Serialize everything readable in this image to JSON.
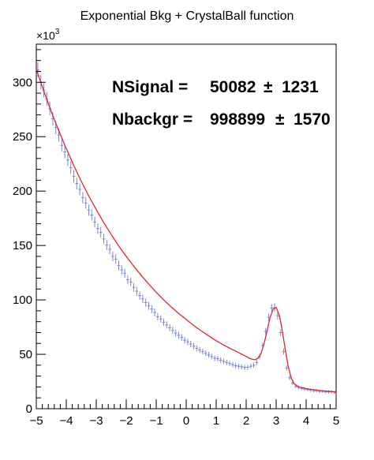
{
  "chart_data": {
    "type": "line",
    "title": "Exponential Bkg + CrystalBall function",
    "xlabel": "",
    "ylabel": "",
    "xlim": [
      -5,
      5
    ],
    "ylim": [
      0,
      335000
    ],
    "y_exponent_label": "×10",
    "y_exponent_power": "3",
    "x_ticks": [
      "−5",
      "−4",
      "−3",
      "−2",
      "−1",
      "0",
      "1",
      "2",
      "3",
      "4",
      "5"
    ],
    "x_tick_values": [
      -5,
      -4,
      -3,
      -2,
      -1,
      0,
      1,
      2,
      3,
      4,
      5
    ],
    "y_ticks": [
      "0",
      "50",
      "100",
      "150",
      "200",
      "250",
      "300"
    ],
    "y_tick_values": [
      0,
      50000,
      100000,
      150000,
      200000,
      250000,
      300000
    ],
    "annotations": [
      {
        "label": "NSignal =",
        "value": "50082",
        "pm": "±",
        "error": "1231"
      },
      {
        "label": "Nbackgr =",
        "value": "998899",
        "pm": "±",
        "error": "1570"
      }
    ],
    "series": [
      {
        "kind": "histogram",
        "color": "#7b86d6",
        "x": [
          -4.95,
          -4.85,
          -4.75,
          -4.65,
          -4.55,
          -4.45,
          -4.35,
          -4.25,
          -4.15,
          -4.05,
          -3.95,
          -3.85,
          -3.75,
          -3.65,
          -3.55,
          -3.45,
          -3.35,
          -3.25,
          -3.15,
          -3.05,
          -2.95,
          -2.85,
          -2.75,
          -2.65,
          -2.55,
          -2.45,
          -2.35,
          -2.25,
          -2.15,
          -2.05,
          -1.95,
          -1.85,
          -1.75,
          -1.65,
          -1.55,
          -1.45,
          -1.35,
          -1.25,
          -1.15,
          -1.05,
          -0.95,
          -0.85,
          -0.75,
          -0.65,
          -0.55,
          -0.45,
          -0.35,
          -0.25,
          -0.15,
          -0.05,
          0.05,
          0.15,
          0.25,
          0.35,
          0.45,
          0.55,
          0.65,
          0.75,
          0.85,
          0.95,
          1.05,
          1.15,
          1.25,
          1.35,
          1.45,
          1.55,
          1.65,
          1.75,
          1.85,
          1.95,
          2.05,
          2.15,
          2.25,
          2.35,
          2.45,
          2.55,
          2.65,
          2.75,
          2.85,
          2.95,
          3.05,
          3.15,
          3.25,
          3.35,
          3.45,
          3.55,
          3.65,
          3.75,
          3.85,
          3.95,
          4.05,
          4.15,
          4.25,
          4.35,
          4.45,
          4.55,
          4.65,
          4.75,
          4.85,
          4.95
        ],
        "y": [
          311500,
          300000,
          292500,
          284500,
          276000,
          266500,
          258500,
          251500,
          242000,
          236000,
          228500,
          221500,
          213500,
          207000,
          201500,
          194000,
          189000,
          182500,
          178000,
          171500,
          165500,
          162000,
          156000,
          150500,
          146500,
          140000,
          137500,
          131500,
          127500,
          124500,
          118500,
          116500,
          111500,
          108000,
          104000,
          101000,
          97500,
          94500,
          91500,
          88500,
          84500,
          82500,
          79500,
          77000,
          74500,
          72000,
          69500,
          67500,
          65500,
          63000,
          61500,
          59500,
          57500,
          55500,
          54000,
          52500,
          51000,
          49500,
          48000,
          46500,
          46000,
          44500,
          43500,
          42500,
          41500,
          40500,
          39500,
          39000,
          38500,
          38000,
          38000,
          39000,
          40000,
          42500,
          48000,
          58000,
          71000,
          84000,
          92500,
          93000,
          85500,
          70000,
          52500,
          37500,
          28500,
          23500,
          20500,
          19500,
          18500,
          18000,
          17500,
          17000,
          16500,
          16500,
          16000,
          16000,
          15500,
          15500,
          15500,
          15000
        ]
      },
      {
        "kind": "fit",
        "color": "#e0262a",
        "x": [
          -5,
          -4.75,
          -4.5,
          -4.25,
          -4,
          -3.75,
          -3.5,
          -3.25,
          -3,
          -2.75,
          -2.5,
          -2.25,
          -2,
          -1.75,
          -1.5,
          -1.25,
          -1,
          -0.75,
          -0.5,
          -0.25,
          0,
          0.25,
          0.5,
          0.75,
          1,
          1.25,
          1.5,
          1.75,
          2,
          2.1,
          2.2,
          2.3,
          2.4,
          2.5,
          2.6,
          2.7,
          2.8,
          2.9,
          3,
          3.1,
          3.2,
          3.3,
          3.4,
          3.5,
          3.6,
          3.75,
          4,
          4.25,
          4.5,
          4.75,
          5
        ],
        "y": [
          312000,
          292000,
          273000,
          255500,
          239000,
          223500,
          209000,
          195500,
          183000,
          171000,
          160000,
          149500,
          140000,
          131000,
          122500,
          114500,
          107000,
          100000,
          93500,
          87500,
          82000,
          76500,
          71500,
          67000,
          62500,
          58500,
          55000,
          51500,
          48000,
          46500,
          45500,
          45000,
          46500,
          51000,
          60000,
          72000,
          84000,
          91500,
          93000,
          86500,
          72500,
          55000,
          39000,
          28500,
          23000,
          20000,
          18500,
          17500,
          16500,
          16000,
          15500
        ]
      }
    ],
    "grid": false,
    "legend": "none"
  }
}
